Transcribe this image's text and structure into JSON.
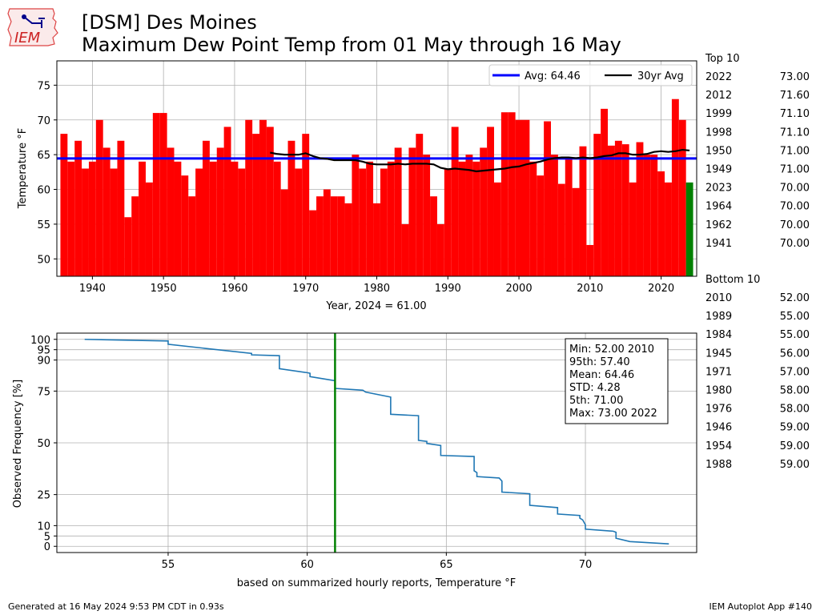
{
  "title_line1": "[DSM] Des Moines",
  "title_line2": "Maximum Dew Point Temp from 01 May through 16 May",
  "logo_text": "IEM",
  "footer_left": "Generated at 16 May 2024 9:53 PM CDT in 0.93s",
  "footer_right": "IEM Autoplot App #140",
  "colors": {
    "bar": "#ff0000",
    "current_bar": "#008000",
    "avg_line": "#0000ff",
    "avg30_line": "#000000",
    "cdf_line": "#1f77b4",
    "vline": "#008000"
  },
  "chart_data": [
    {
      "type": "bar",
      "xlabel": "Year, 2024 = 61.00",
      "ylabel": "Temperature $^\\circ$F",
      "xlim": [
        1935,
        2025
      ],
      "ylim": [
        47.5,
        78.5
      ],
      "yticks": [
        50,
        55,
        60,
        65,
        70,
        75
      ],
      "xticks": [
        1940,
        1950,
        1960,
        1970,
        1980,
        1990,
        2000,
        2010,
        2020
      ],
      "grid": true,
      "legend_placement": "top-right",
      "legend": [
        "Avg: 64.46",
        "30yr Avg"
      ],
      "average": 64.46,
      "current_year": 2024,
      "current_value": 61.0,
      "years": [
        1936,
        1937,
        1938,
        1939,
        1940,
        1941,
        1942,
        1943,
        1944,
        1945,
        1946,
        1947,
        1948,
        1949,
        1950,
        1951,
        1952,
        1953,
        1954,
        1955,
        1956,
        1957,
        1958,
        1959,
        1960,
        1961,
        1962,
        1963,
        1964,
        1965,
        1966,
        1967,
        1968,
        1969,
        1970,
        1971,
        1972,
        1973,
        1974,
        1975,
        1976,
        1977,
        1978,
        1979,
        1980,
        1981,
        1982,
        1983,
        1984,
        1985,
        1986,
        1987,
        1988,
        1989,
        1990,
        1991,
        1992,
        1993,
        1994,
        1995,
        1996,
        1997,
        1998,
        1999,
        2000,
        2001,
        2002,
        2003,
        2004,
        2005,
        2006,
        2007,
        2008,
        2009,
        2010,
        2011,
        2012,
        2013,
        2014,
        2015,
        2016,
        2017,
        2018,
        2019,
        2020,
        2021,
        2022,
        2023,
        2024
      ],
      "values": [
        68,
        64,
        67,
        63,
        64,
        70,
        66,
        63,
        67,
        56,
        59,
        64,
        61,
        71,
        71,
        66,
        64,
        62,
        59,
        63,
        67,
        64,
        66,
        69,
        64,
        63,
        70,
        68,
        70,
        69,
        64,
        60,
        67,
        63,
        68,
        57,
        59,
        60,
        59,
        59,
        58,
        65,
        63,
        64,
        58,
        63,
        64,
        66,
        55,
        66,
        68,
        65,
        59,
        55,
        63,
        69,
        64,
        65,
        64,
        66,
        69,
        61,
        71.1,
        71.1,
        70,
        70,
        64,
        62,
        69.8,
        65,
        60.8,
        64.6,
        60.2,
        66.2,
        52,
        68,
        71.6,
        66.3,
        67,
        66.5,
        61,
        66.8,
        65,
        65,
        62.6,
        61,
        73,
        70,
        61
      ],
      "avg30": {
        "years": [
          1965,
          1966,
          1967,
          1968,
          1969,
          1970,
          1971,
          1972,
          1973,
          1974,
          1975,
          1976,
          1977,
          1978,
          1979,
          1980,
          1981,
          1982,
          1983,
          1984,
          1985,
          1986,
          1987,
          1988,
          1989,
          1990,
          1991,
          1992,
          1993,
          1994,
          1995,
          1996,
          1997,
          1998,
          1999,
          2000,
          2001,
          2002,
          2003,
          2004,
          2005,
          2006,
          2007,
          2008,
          2009,
          2010,
          2011,
          2012,
          2013,
          2014,
          2015,
          2016,
          2017,
          2018,
          2019,
          2020,
          2021,
          2022,
          2023,
          2024
        ],
        "values": [
          65.3,
          65.1,
          65.0,
          65.0,
          65.0,
          65.2,
          64.8,
          64.5,
          64.4,
          64.2,
          64.2,
          64.2,
          64.2,
          64.0,
          63.7,
          63.6,
          63.6,
          63.6,
          63.7,
          63.6,
          63.7,
          63.7,
          63.7,
          63.6,
          63.1,
          62.9,
          63.0,
          62.9,
          62.8,
          62.6,
          62.7,
          62.8,
          62.9,
          63.0,
          63.2,
          63.3,
          63.6,
          63.8,
          64.0,
          64.3,
          64.5,
          64.6,
          64.6,
          64.5,
          64.6,
          64.5,
          64.6,
          64.8,
          64.9,
          65.2,
          65.2,
          65.0,
          65.0,
          65.1,
          65.4,
          65.5,
          65.4,
          65.5,
          65.7,
          65.6
        ]
      }
    },
    {
      "type": "line",
      "xlabel": "based on summarized hourly reports, Temperature $^\\circ$F",
      "ylabel": "Observed Frequency [%]",
      "xlim": [
        51.0,
        74.0
      ],
      "ylim": [
        -3,
        103
      ],
      "xticks": [
        55,
        60,
        65,
        70
      ],
      "yticks": [
        0,
        5,
        10,
        25,
        50,
        75,
        90,
        95,
        100
      ],
      "grid": true,
      "vline_x": 61.0,
      "stats_box": [
        "Min: 52.00 2010",
        "95th: 57.40",
        "Mean: 64.46",
        "STD: 4.28",
        "5th: 71.00",
        "Max: 73.00 2022"
      ],
      "x": [
        52.0,
        55.0,
        55.0,
        58.0,
        58.0,
        59.0,
        59.0,
        60.0,
        60.1,
        60.1,
        61.0,
        61.0,
        62.0,
        62.1,
        63.0,
        63.0,
        64.0,
        64.0,
        64.3,
        64.3,
        64.8,
        64.8,
        66.0,
        66.0,
        66.1,
        66.1,
        66.9,
        67.0,
        67.0,
        68.0,
        68.0,
        69.0,
        69.0,
        69.8,
        69.8,
        69.9,
        70.0,
        70.0,
        71.0,
        71.1,
        71.1,
        71.6,
        73.0
      ],
      "y": [
        100,
        99.2,
        97.6,
        93.2,
        92.5,
        92.1,
        85.8,
        83.9,
        83.6,
        82.0,
        80.0,
        76.3,
        75.4,
        74.5,
        72.1,
        63.8,
        63.1,
        51.2,
        50.7,
        49.7,
        48.7,
        43.9,
        43.4,
        36.5,
        35.6,
        33.7,
        33.0,
        31.5,
        26.2,
        25.4,
        19.8,
        18.7,
        15.6,
        14.9,
        13.6,
        12.8,
        10.4,
        8.3,
        7.3,
        6.8,
        3.9,
        2.3,
        1.2
      ]
    },
    {
      "type": "table",
      "top10_header": "Top 10",
      "top10": [
        [
          "2022",
          "73.00"
        ],
        [
          "2012",
          "71.60"
        ],
        [
          "1999",
          "71.10"
        ],
        [
          "1998",
          "71.10"
        ],
        [
          "1950",
          "71.00"
        ],
        [
          "1949",
          "71.00"
        ],
        [
          "2023",
          "70.00"
        ],
        [
          "1964",
          "70.00"
        ],
        [
          "1962",
          "70.00"
        ],
        [
          "1941",
          "70.00"
        ]
      ],
      "bottom10_header": "Bottom 10",
      "bottom10": [
        [
          "2010",
          "52.00"
        ],
        [
          "1989",
          "55.00"
        ],
        [
          "1984",
          "55.00"
        ],
        [
          "1945",
          "56.00"
        ],
        [
          "1971",
          "57.00"
        ],
        [
          "1980",
          "58.00"
        ],
        [
          "1976",
          "58.00"
        ],
        [
          "1946",
          "59.00"
        ],
        [
          "1954",
          "59.00"
        ],
        [
          "1988",
          "59.00"
        ]
      ]
    }
  ]
}
